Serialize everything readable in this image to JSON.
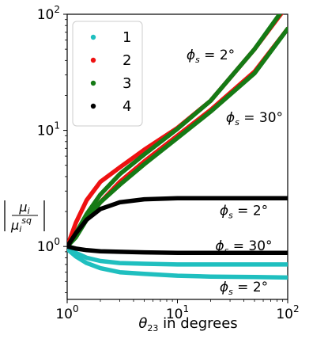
{
  "chart_data": {
    "type": "line",
    "xlabel": "θ23 in degrees",
    "ylabel": "|μi / μi^sq|",
    "x_scale": "log",
    "y_scale": "log",
    "xlim": [
      1,
      100
    ],
    "ylim": [
      0.35,
      100
    ],
    "x_ticks": [
      {
        "base": "10",
        "exp": "0"
      },
      {
        "base": "10",
        "exp": "1"
      },
      {
        "base": "10",
        "exp": "2"
      }
    ],
    "y_ticks": [
      {
        "base": "10",
        "exp": "0"
      },
      {
        "base": "10",
        "exp": "1"
      },
      {
        "base": "10",
        "exp": "2"
      }
    ],
    "x_tick_values": [
      1,
      10,
      100
    ],
    "y_tick_values": [
      1,
      10,
      100
    ],
    "legend": {
      "placement": "top-left",
      "entries": [
        {
          "label": "1",
          "color": "#1fbfbf"
        },
        {
          "label": "2",
          "color": "#ee1111"
        },
        {
          "label": "3",
          "color": "#157a15"
        },
        {
          "label": "4",
          "color": "#000000"
        }
      ]
    },
    "series": [
      {
        "name": "1",
        "color": "#1fbfbf",
        "x": [
          1.0,
          1.2,
          1.5,
          2,
          3,
          5,
          10,
          20,
          50,
          100
        ],
        "y": [
          0.95,
          0.88,
          0.8,
          0.75,
          0.72,
          0.71,
          0.7,
          0.7,
          0.7,
          0.7
        ]
      },
      {
        "name": "1",
        "color": "#1fbfbf",
        "x": [
          1.0,
          1.2,
          1.5,
          2,
          3,
          5,
          10,
          20,
          50,
          100
        ],
        "y": [
          0.95,
          0.82,
          0.72,
          0.65,
          0.6,
          0.58,
          0.56,
          0.55,
          0.545,
          0.54
        ]
      },
      {
        "name": "2",
        "color": "#ee1111",
        "x": [
          1.0,
          1.2,
          1.5,
          2,
          3,
          5,
          10,
          20,
          50,
          100
        ],
        "y": [
          1.0,
          1.6,
          2.5,
          3.6,
          4.8,
          6.8,
          10.5,
          18,
          50,
          120
        ]
      },
      {
        "name": "2",
        "color": "#ee1111",
        "x": [
          1.0,
          1.2,
          1.5,
          2,
          3,
          5,
          10,
          20,
          50,
          100
        ],
        "y": [
          1.0,
          1.3,
          1.8,
          2.4,
          3.6,
          5.4,
          9,
          15,
          32,
          75
        ]
      },
      {
        "name": "3",
        "color": "#157a15",
        "x": [
          1.0,
          1.2,
          1.5,
          2,
          3,
          5,
          10,
          20,
          50,
          100
        ],
        "y": [
          1.0,
          1.3,
          1.9,
          2.8,
          4.2,
          6.2,
          10.3,
          18,
          50,
          125
        ]
      },
      {
        "name": "3",
        "color": "#157a15",
        "x": [
          1.0,
          1.2,
          1.5,
          2,
          3,
          5,
          10,
          20,
          50,
          100
        ],
        "y": [
          1.0,
          1.2,
          1.7,
          2.4,
          3.4,
          5.1,
          8.6,
          14.5,
          31,
          75
        ]
      },
      {
        "name": "4",
        "color": "#000000",
        "x": [
          1.0,
          1.2,
          1.5,
          2,
          3,
          5,
          10,
          20,
          50,
          100
        ],
        "y": [
          1.0,
          1.3,
          1.7,
          2.1,
          2.4,
          2.55,
          2.6,
          2.6,
          2.6,
          2.6
        ]
      },
      {
        "name": "4",
        "color": "#000000",
        "x": [
          1.0,
          1.2,
          1.5,
          2,
          3,
          5,
          10,
          20,
          50,
          100
        ],
        "y": [
          1.0,
          0.96,
          0.93,
          0.91,
          0.9,
          0.89,
          0.88,
          0.88,
          0.88,
          0.88
        ]
      }
    ],
    "annotations": [
      {
        "text": "ϕs = 2°",
        "x": 20,
        "y": 45
      },
      {
        "text": "ϕs = 30°",
        "x": 50,
        "y": 13
      },
      {
        "text": "ϕs = 2°",
        "x": 40,
        "y": 2.05
      },
      {
        "text": "ϕs = 30°",
        "x": 40,
        "y": 1.02
      },
      {
        "text": "ϕs = 2°",
        "x": 40,
        "y": 0.45
      }
    ]
  }
}
